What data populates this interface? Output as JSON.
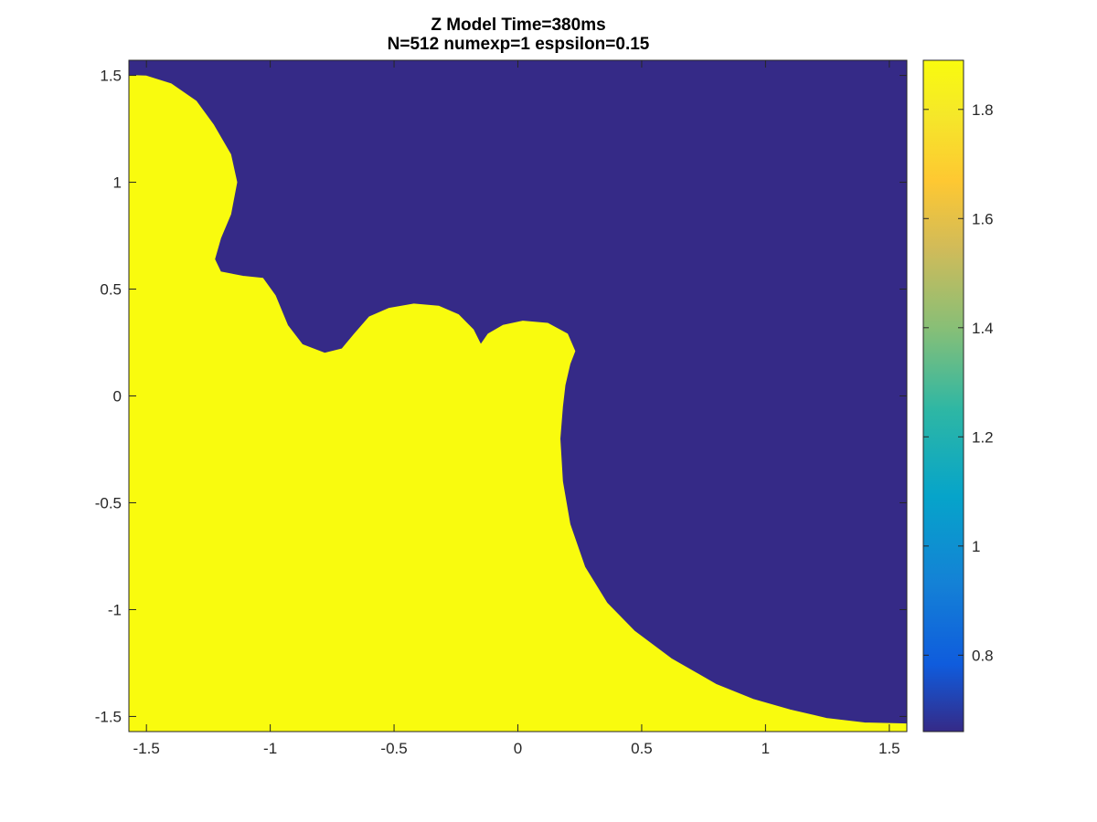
{
  "chart_data": {
    "type": "heatmap",
    "title": "Z Model Time=380ms",
    "subtitle": "N=512 numexp=1 espsilon=0.15",
    "xlim": [
      -1.5708,
      1.5708
    ],
    "ylim": [
      -1.5708,
      1.5708
    ],
    "xticks": [
      -1.5,
      -1,
      -0.5,
      0,
      0.5,
      1,
      1.5
    ],
    "xtick_labels": [
      "-1.5",
      "-1",
      "-0.5",
      "0",
      "0.5",
      "1",
      "1.5"
    ],
    "yticks": [
      1.5,
      1,
      0.5,
      0,
      -0.5,
      -1,
      -1.5
    ],
    "ytick_labels": [
      "1.5",
      "1",
      "0.5",
      "0",
      "-0.5",
      "-1",
      "-1.5"
    ],
    "grid": false,
    "colormap": "parula",
    "colorbar": {
      "location": "right",
      "range": [
        0.66,
        1.89
      ],
      "ticks": [
        1.8,
        1.6,
        1.4,
        1.2,
        1,
        0.8
      ],
      "tick_labels": [
        "1.8",
        "1.6",
        "1.4",
        "1.2",
        "1",
        "0.8"
      ]
    },
    "low_value": 0.66,
    "high_value": 1.89,
    "background_color": "#352a87",
    "region_color": "#f9fb0e",
    "high_region_boundary": [
      [
        -1.5708,
        1.5
      ],
      [
        -1.5,
        1.497
      ],
      [
        -1.4,
        1.46
      ],
      [
        -1.3,
        1.38
      ],
      [
        -1.23,
        1.27
      ],
      [
        -1.16,
        1.13
      ],
      [
        -1.135,
        1.0
      ],
      [
        -1.16,
        0.85
      ],
      [
        -1.2,
        0.74
      ],
      [
        -1.225,
        0.64
      ],
      [
        -1.2,
        0.58
      ],
      [
        -1.11,
        0.56
      ],
      [
        -1.03,
        0.55
      ],
      [
        -0.98,
        0.47
      ],
      [
        -0.93,
        0.33
      ],
      [
        -0.87,
        0.24
      ],
      [
        -0.78,
        0.2
      ],
      [
        -0.71,
        0.22
      ],
      [
        -0.66,
        0.29
      ],
      [
        -0.6,
        0.37
      ],
      [
        -0.52,
        0.41
      ],
      [
        -0.42,
        0.43
      ],
      [
        -0.32,
        0.42
      ],
      [
        -0.24,
        0.38
      ],
      [
        -0.18,
        0.31
      ],
      [
        -0.15,
        0.24
      ],
      [
        -0.12,
        0.29
      ],
      [
        -0.06,
        0.33
      ],
      [
        0.02,
        0.35
      ],
      [
        0.12,
        0.34
      ],
      [
        0.2,
        0.29
      ],
      [
        0.23,
        0.21
      ],
      [
        0.21,
        0.15
      ],
      [
        0.19,
        0.05
      ],
      [
        0.18,
        -0.05
      ],
      [
        0.17,
        -0.2
      ],
      [
        0.18,
        -0.4
      ],
      [
        0.21,
        -0.6
      ],
      [
        0.27,
        -0.8
      ],
      [
        0.36,
        -0.97
      ],
      [
        0.47,
        -1.1
      ],
      [
        0.62,
        -1.23
      ],
      [
        0.8,
        -1.35
      ],
      [
        0.95,
        -1.42
      ],
      [
        1.1,
        -1.47
      ],
      [
        1.25,
        -1.51
      ],
      [
        1.4,
        -1.53
      ],
      [
        1.5708,
        -1.535
      ],
      [
        1.5708,
        -1.5708
      ],
      [
        -1.5708,
        -1.5708
      ]
    ]
  }
}
